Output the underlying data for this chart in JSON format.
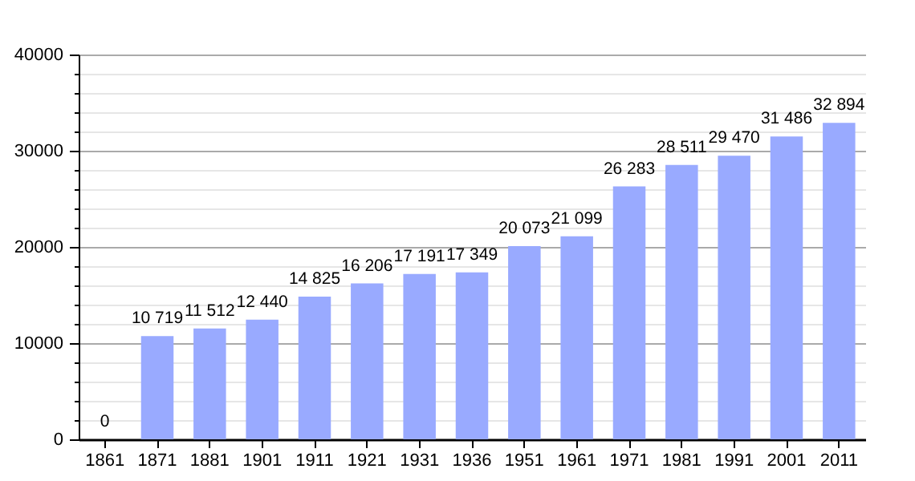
{
  "chart_data": {
    "type": "bar",
    "categories": [
      "1861",
      "1871",
      "1881",
      "1901",
      "1911",
      "1921",
      "1931",
      "1936",
      "1951",
      "1961",
      "1971",
      "1981",
      "1991",
      "2001",
      "2011"
    ],
    "values": [
      0,
      10719,
      11512,
      12440,
      14825,
      16206,
      17191,
      17349,
      20073,
      21099,
      26283,
      28511,
      29470,
      31486,
      32894
    ],
    "value_labels": [
      "0",
      "10 719",
      "11 512",
      "12 440",
      "14 825",
      "16 206",
      "17 191",
      "17 349",
      "20 073",
      "21 099",
      "26 283",
      "28 511",
      "29 470",
      "31 486",
      "32 894"
    ],
    "color": "#99aaff",
    "ylim": [
      0,
      40000
    ],
    "yticks": [
      0,
      {
        "value": 2000,
        "label": null
      },
      {
        "value": 4000,
        "label": null
      },
      {
        "value": 6000,
        "label": null
      },
      {
        "value": 8000,
        "label": null
      },
      10000,
      {
        "value": 12000,
        "label": null
      },
      {
        "value": 14000,
        "label": null
      },
      {
        "value": 16000,
        "label": null
      },
      {
        "value": 18000,
        "label": null
      },
      20000,
      {
        "value": 22000,
        "label": null
      },
      {
        "value": 24000,
        "label": null
      },
      {
        "value": 26000,
        "label": null
      },
      {
        "value": 28000,
        "label": null
      },
      30000,
      {
        "value": 32000,
        "label": null
      },
      {
        "value": 34000,
        "label": null
      },
      {
        "value": 36000,
        "label": null
      },
      {
        "value": 38000,
        "label": null
      },
      40000
    ],
    "grid": true
  }
}
